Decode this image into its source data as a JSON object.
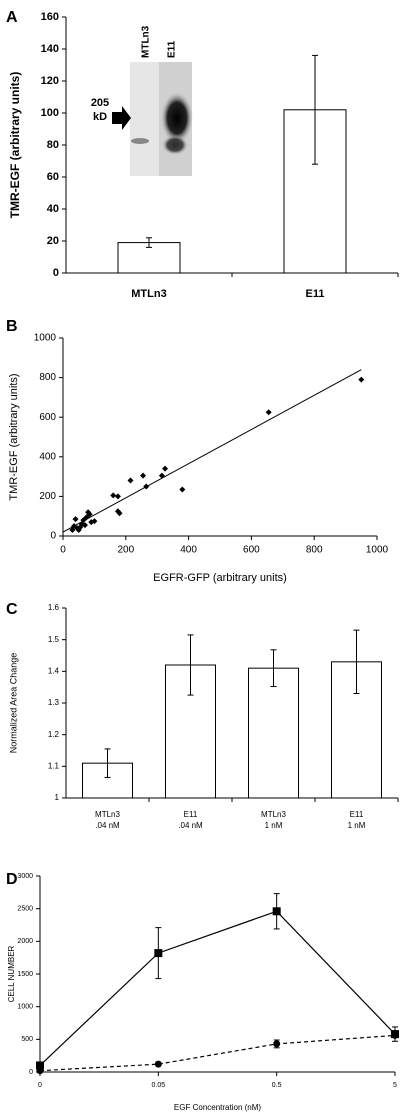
{
  "chart_data": [
    {
      "type": "bar",
      "panel": "A",
      "ylabel": "TMR-EGF (arbitrary units)",
      "categories": [
        "MTLn3",
        "E11"
      ],
      "values": [
        19,
        102
      ],
      "errors": [
        3,
        34
      ],
      "color": "#ffffff",
      "ylim": [
        0,
        160
      ],
      "yticks": [
        0,
        20,
        40,
        60,
        80,
        100,
        120,
        140,
        160
      ],
      "inset": {
        "lanes": [
          "MTLn3",
          "E11"
        ],
        "marker": [
          "205",
          "kD"
        ]
      }
    },
    {
      "type": "scatter",
      "panel": "B",
      "xlabel": "EGFR-GFP (arbitrary units)",
      "ylabel": "TMR-EGF (arbitrary units)",
      "x": [
        30,
        35,
        40,
        45,
        50,
        55,
        60,
        65,
        70,
        75,
        80,
        85,
        90,
        100,
        160,
        175,
        175,
        180,
        215,
        255,
        265,
        315,
        325,
        380,
        655,
        950
      ],
      "y": [
        30,
        50,
        85,
        40,
        30,
        45,
        60,
        80,
        55,
        95,
        120,
        110,
        70,
        75,
        205,
        200,
        125,
        115,
        280,
        305,
        250,
        305,
        340,
        235,
        625,
        790
      ],
      "color": "#000000",
      "fit": {
        "x": [
          0,
          950
        ],
        "y": [
          20,
          840
        ]
      },
      "xlim": [
        0,
        1000
      ],
      "ylim": [
        0,
        1000
      ],
      "xticks": [
        0,
        200,
        400,
        600,
        800,
        1000
      ],
      "yticks": [
        0,
        200,
        400,
        600,
        800,
        1000
      ]
    },
    {
      "type": "bar",
      "panel": "C",
      "ylabel": "Normalized Area Change",
      "categories": [
        [
          "MTLn3",
          ".04 nM"
        ],
        [
          "E11",
          ".04 nM"
        ],
        [
          "MTLn3",
          "1 nM"
        ],
        [
          "E11",
          "1 nM"
        ]
      ],
      "values": [
        1.11,
        1.42,
        1.41,
        1.43
      ],
      "errors": [
        0.045,
        0.095,
        0.058,
        0.1
      ],
      "color": "#ffffff",
      "ylim": [
        1,
        1.6
      ],
      "yticks": [
        1,
        1.1,
        1.2,
        1.3,
        1.4,
        1.5,
        1.6
      ]
    },
    {
      "type": "line",
      "panel": "D",
      "xlabel": "EGF Concentration (nM)",
      "ylabel": "CELL NUMBER",
      "categories": [
        "0",
        "0.05",
        "0.5",
        "5"
      ],
      "series": [
        {
          "color": "#000000",
          "marker": "square",
          "dash": false,
          "values": [
            100,
            1820,
            2460,
            580
          ],
          "errors": [
            0,
            390,
            270,
            110
          ]
        },
        {
          "color": "#000000",
          "marker": "circle",
          "dash": true,
          "values": [
            20,
            120,
            430,
            560
          ],
          "errors": [
            0,
            0,
            60,
            0
          ]
        }
      ],
      "ylim": [
        0,
        3000
      ],
      "yticks": [
        0,
        500,
        1000,
        1500,
        2000,
        2500,
        3000
      ]
    }
  ]
}
